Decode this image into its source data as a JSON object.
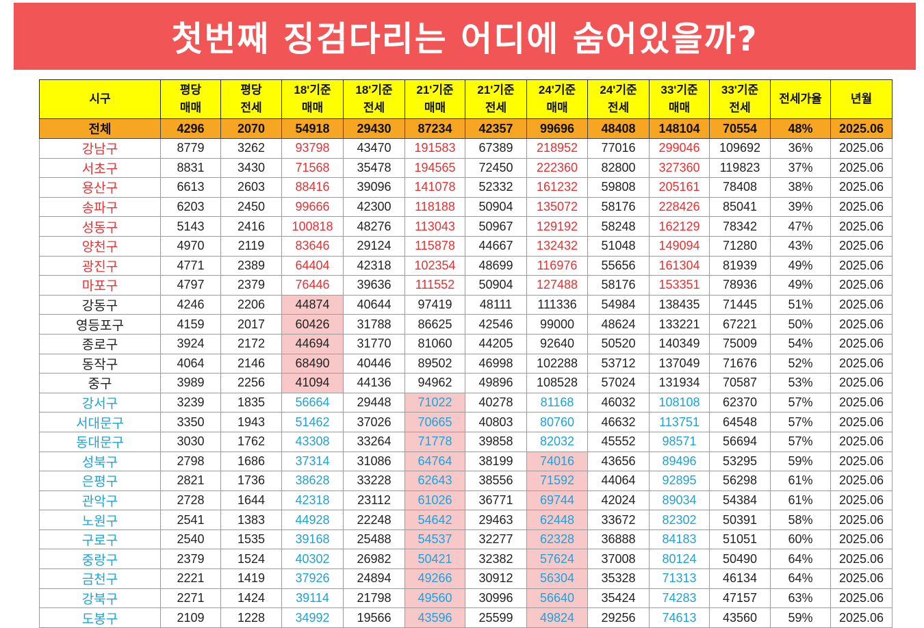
{
  "title": "첫번째 징검다리는 어디에 숨어있을까?",
  "headers": [
    [
      "시구"
    ],
    [
      "평당",
      "매매"
    ],
    [
      "평당",
      "전세"
    ],
    [
      "18'기준",
      "매매"
    ],
    [
      "18'기준",
      "전세"
    ],
    [
      "21'기준",
      "매매"
    ],
    [
      "21'기준",
      "전세"
    ],
    [
      "24'기준",
      "매매"
    ],
    [
      "24'기준",
      "전세"
    ],
    [
      "33'기준",
      "매매"
    ],
    [
      "33'기준",
      "전세"
    ],
    [
      "전세가율"
    ],
    [
      "년월"
    ]
  ],
  "total_row": [
    "전체",
    "4296",
    "2070",
    "54918",
    "29430",
    "87234",
    "42357",
    "99696",
    "48408",
    "148104",
    "70554",
    "48%",
    "2025.06"
  ],
  "colors": {
    "red": "#ea3030",
    "blue": "#1aa3dc",
    "highlight": "#f8c8c8",
    "header": "#ffff00",
    "total": "#f6a623",
    "banner": "#f25555"
  },
  "rows": [
    {
      "group": "red",
      "hl": [],
      "cells": [
        "강남구",
        "8779",
        "3262",
        "93798",
        "43470",
        "191583",
        "67389",
        "218952",
        "77016",
        "299046",
        "109692",
        "36%",
        "2025.06"
      ]
    },
    {
      "group": "red",
      "hl": [],
      "cells": [
        "서초구",
        "8831",
        "3430",
        "71568",
        "35478",
        "194565",
        "72450",
        "222360",
        "82800",
        "327360",
        "119823",
        "37%",
        "2025.06"
      ]
    },
    {
      "group": "red",
      "hl": [],
      "cells": [
        "용산구",
        "6613",
        "2603",
        "88416",
        "39096",
        "141078",
        "52332",
        "161232",
        "59808",
        "205161",
        "78408",
        "38%",
        "2025.06"
      ]
    },
    {
      "group": "red",
      "hl": [],
      "cells": [
        "송파구",
        "6203",
        "2450",
        "99666",
        "42300",
        "118188",
        "50904",
        "135072",
        "58176",
        "228426",
        "85041",
        "39%",
        "2025.06"
      ]
    },
    {
      "group": "red",
      "hl": [],
      "cells": [
        "성동구",
        "5143",
        "2416",
        "100818",
        "48276",
        "113043",
        "50967",
        "129192",
        "58248",
        "162129",
        "78342",
        "47%",
        "2025.06"
      ]
    },
    {
      "group": "red",
      "hl": [],
      "cells": [
        "양천구",
        "4970",
        "2119",
        "83646",
        "29124",
        "115878",
        "44667",
        "132432",
        "51048",
        "149094",
        "71280",
        "43%",
        "2025.06"
      ]
    },
    {
      "group": "red",
      "hl": [],
      "cells": [
        "광진구",
        "4771",
        "2389",
        "64404",
        "42318",
        "102354",
        "48699",
        "116976",
        "55656",
        "161304",
        "81939",
        "49%",
        "2025.06"
      ]
    },
    {
      "group": "red",
      "hl": [],
      "cells": [
        "마포구",
        "4797",
        "2379",
        "76446",
        "39636",
        "111552",
        "50904",
        "127488",
        "58176",
        "153351",
        "78936",
        "49%",
        "2025.06"
      ]
    },
    {
      "group": "black",
      "hl": [
        3
      ],
      "cells": [
        "강동구",
        "4246",
        "2206",
        "44874",
        "40644",
        "97419",
        "48111",
        "111336",
        "54984",
        "138435",
        "71445",
        "51%",
        "2025.06"
      ]
    },
    {
      "group": "black",
      "hl": [
        3
      ],
      "cells": [
        "영등포구",
        "4159",
        "2017",
        "60426",
        "31788",
        "86625",
        "42546",
        "99000",
        "48624",
        "133221",
        "67221",
        "50%",
        "2025.06"
      ]
    },
    {
      "group": "black",
      "hl": [
        3
      ],
      "cells": [
        "종로구",
        "3924",
        "2172",
        "44694",
        "31770",
        "81060",
        "44205",
        "92640",
        "50520",
        "140349",
        "75009",
        "54%",
        "2025.06"
      ]
    },
    {
      "group": "black",
      "hl": [
        3
      ],
      "cells": [
        "동작구",
        "4064",
        "2146",
        "68490",
        "40446",
        "89502",
        "46998",
        "102288",
        "53712",
        "137049",
        "71676",
        "52%",
        "2025.06"
      ]
    },
    {
      "group": "black",
      "hl": [
        3
      ],
      "cells": [
        "중구",
        "3989",
        "2256",
        "41094",
        "44136",
        "94962",
        "49896",
        "108528",
        "57024",
        "131934",
        "70587",
        "53%",
        "2025.06"
      ]
    },
    {
      "group": "blue",
      "hl": [
        5
      ],
      "cells": [
        "강서구",
        "3239",
        "1835",
        "56664",
        "29448",
        "71022",
        "40278",
        "81168",
        "46032",
        "108108",
        "62370",
        "57%",
        "2025.06"
      ]
    },
    {
      "group": "blue",
      "hl": [
        5
      ],
      "cells": [
        "서대문구",
        "3350",
        "1943",
        "51462",
        "37026",
        "70665",
        "40803",
        "80760",
        "46632",
        "113751",
        "64548",
        "57%",
        "2025.06"
      ]
    },
    {
      "group": "blue",
      "hl": [
        5
      ],
      "cells": [
        "동대문구",
        "3030",
        "1762",
        "43308",
        "33264",
        "71778",
        "39858",
        "82032",
        "45552",
        "98571",
        "56694",
        "57%",
        "2025.06"
      ]
    },
    {
      "group": "blue",
      "hl": [
        5,
        7
      ],
      "cells": [
        "성북구",
        "2798",
        "1686",
        "37314",
        "31086",
        "64764",
        "38199",
        "74016",
        "43656",
        "89496",
        "53295",
        "59%",
        "2025.06"
      ]
    },
    {
      "group": "blue",
      "hl": [
        5,
        7
      ],
      "cells": [
        "은평구",
        "2821",
        "1736",
        "38628",
        "33228",
        "62643",
        "38556",
        "71592",
        "44064",
        "92895",
        "56298",
        "61%",
        "2025.06"
      ]
    },
    {
      "group": "blue",
      "hl": [
        5,
        7
      ],
      "cells": [
        "관악구",
        "2728",
        "1644",
        "42318",
        "23112",
        "61026",
        "36771",
        "69744",
        "42024",
        "89034",
        "54384",
        "61%",
        "2025.06"
      ]
    },
    {
      "group": "blue",
      "hl": [
        5,
        7
      ],
      "cells": [
        "노원구",
        "2541",
        "1383",
        "44928",
        "22248",
        "54642",
        "29463",
        "62448",
        "33672",
        "82302",
        "50391",
        "58%",
        "2025.06"
      ]
    },
    {
      "group": "blue",
      "hl": [
        5,
        7
      ],
      "cells": [
        "구로구",
        "2540",
        "1535",
        "39168",
        "25488",
        "54537",
        "32277",
        "62328",
        "36888",
        "84183",
        "51051",
        "60%",
        "2025.06"
      ]
    },
    {
      "group": "blue",
      "hl": [
        5,
        7
      ],
      "cells": [
        "중랑구",
        "2379",
        "1524",
        "40302",
        "26982",
        "50421",
        "32382",
        "57624",
        "37008",
        "80124",
        "50490",
        "64%",
        "2025.06"
      ]
    },
    {
      "group": "blue",
      "hl": [
        5,
        7
      ],
      "cells": [
        "금천구",
        "2221",
        "1419",
        "37926",
        "24894",
        "49266",
        "30912",
        "56304",
        "35328",
        "71313",
        "46134",
        "64%",
        "2025.06"
      ]
    },
    {
      "group": "blue",
      "hl": [
        5,
        7
      ],
      "cells": [
        "강북구",
        "2271",
        "1424",
        "39114",
        "21798",
        "49560",
        "30996",
        "56640",
        "35424",
        "74283",
        "47157",
        "63%",
        "2025.06"
      ]
    },
    {
      "group": "blue",
      "hl": [
        5,
        7
      ],
      "cells": [
        "도봉구",
        "2109",
        "1228",
        "34992",
        "19566",
        "43596",
        "25599",
        "49824",
        "29256",
        "74613",
        "43560",
        "59%",
        "2025.06"
      ]
    }
  ]
}
